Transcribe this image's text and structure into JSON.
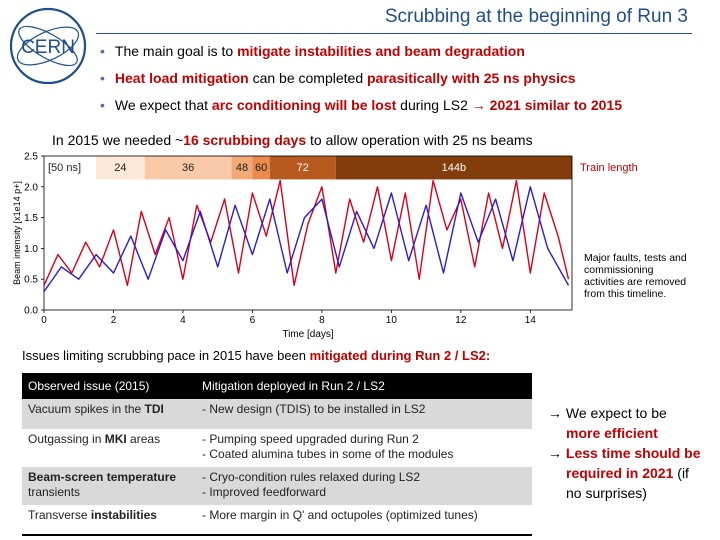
{
  "header": {
    "title": "Scrubbing at the beginning of Run 3",
    "logo_text": "CERN"
  },
  "bullets": [
    {
      "parts": [
        {
          "t": "The main goal is to ",
          "h": false
        },
        {
          "t": "mitigate instabilities and beam degradation",
          "h": true
        }
      ]
    },
    {
      "parts": [
        {
          "t": "Heat load mitigation",
          "h": true
        },
        {
          "t": " can be completed ",
          "h": false
        },
        {
          "t": "parasitically with 25 ns physics",
          "h": true
        }
      ]
    },
    {
      "parts": [
        {
          "t": "We expect that ",
          "h": false
        },
        {
          "t": "arc conditioning will be lost",
          "h": true
        },
        {
          "t": " during LS2 ",
          "h": false
        },
        {
          "t": "→",
          "h": true
        },
        {
          "t": " 2021 similar to 2015",
          "h": true
        }
      ]
    }
  ],
  "chart_heading": {
    "pre": "In 2015 we needed ~",
    "highlight": "16 scrubbing days",
    "post": " to allow operation with 25 ns beams"
  },
  "chart_data": {
    "type": "line",
    "xlabel": "Time [days]",
    "ylabel": "Beam intensity [x1e14 p+]",
    "xlim": [
      0,
      15.2
    ],
    "ylim": [
      0,
      2.5
    ],
    "xticks": [
      0,
      2,
      4,
      6,
      8,
      10,
      12,
      14
    ],
    "yticks": [
      0.0,
      0.5,
      1.0,
      1.5,
      2.0,
      2.5
    ],
    "train_length_label": "Train length",
    "train_bands": [
      {
        "label": "[50 ns]",
        "start": 0.0,
        "end": 1.5,
        "color": "#ffffff"
      },
      {
        "label": "24",
        "start": 1.5,
        "end": 2.9,
        "color": "#fde7d6"
      },
      {
        "label": "36",
        "start": 2.9,
        "end": 5.4,
        "color": "#f9c9a8"
      },
      {
        "label": "48",
        "start": 5.4,
        "end": 6.0,
        "color": "#f3a877"
      },
      {
        "label": "60",
        "start": 6.0,
        "end": 6.5,
        "color": "#e98a4e"
      },
      {
        "label": "72",
        "start": 6.5,
        "end": 8.4,
        "color": "#b75a20"
      },
      {
        "label": "144b",
        "start": 8.4,
        "end": 15.2,
        "color": "#833c0c"
      }
    ],
    "series": [
      {
        "color": "#d9001b",
        "x": [
          0,
          0.4,
          0.8,
          1.2,
          1.6,
          2.0,
          2.4,
          2.8,
          3.2,
          3.6,
          4.0,
          4.4,
          4.8,
          5.2,
          5.6,
          6.0,
          6.4,
          6.8,
          7.2,
          7.6,
          8.0,
          8.4,
          8.8,
          9.2,
          9.6,
          10.0,
          10.4,
          10.8,
          11.2,
          11.6,
          12.0,
          12.4,
          12.8,
          13.2,
          13.6,
          14.0,
          14.4,
          14.8,
          15.1
        ],
        "y": [
          0.4,
          0.9,
          0.6,
          1.1,
          0.7,
          1.3,
          0.4,
          1.6,
          0.9,
          1.5,
          0.5,
          1.7,
          1.1,
          1.8,
          0.6,
          1.9,
          1.2,
          2.1,
          0.4,
          1.4,
          2.0,
          0.6,
          1.8,
          1.1,
          2.0,
          0.8,
          1.9,
          0.5,
          2.1,
          1.3,
          1.8,
          0.7,
          1.9,
          1.0,
          2.1,
          0.6,
          1.9,
          1.2,
          0.5
        ]
      },
      {
        "color": "#2a1bd6",
        "x": [
          0,
          0.5,
          1.0,
          1.5,
          2.0,
          2.5,
          3.0,
          3.5,
          4.0,
          4.5,
          5.0,
          5.5,
          6.0,
          6.5,
          7.0,
          7.5,
          8.0,
          8.5,
          9.0,
          9.5,
          10.0,
          10.5,
          11.0,
          11.5,
          12.0,
          12.5,
          13.0,
          13.5,
          14.0,
          14.5,
          15.1
        ],
        "y": [
          0.3,
          0.7,
          0.5,
          0.9,
          0.6,
          1.2,
          0.5,
          1.3,
          0.8,
          1.6,
          0.7,
          1.7,
          0.9,
          1.8,
          0.6,
          1.5,
          1.8,
          0.7,
          1.6,
          1.0,
          1.9,
          0.8,
          1.7,
          0.6,
          1.9,
          1.1,
          1.8,
          0.8,
          2.0,
          1.0,
          0.4
        ]
      }
    ]
  },
  "side_note": [
    "Major faults, tests and",
    "commissioning",
    "activities are removed",
    "from this timeline."
  ],
  "issues_heading": {
    "pre": "Issues limiting scrubbing pace in 2015 have been ",
    "highlight": "mitigated during Run 2 / LS2:"
  },
  "table": {
    "headers": [
      "Observed issue (2015)",
      "Mitigation deployed in Run 2 / LS2"
    ],
    "rows": [
      {
        "issue_pre": "Vacuum spikes in the ",
        "issue_bold": "TDI",
        "issue_post": "",
        "mitigation": [
          "- New design (TDIS) to be installed in LS2"
        ]
      },
      {
        "issue_pre": "Outgassing in ",
        "issue_bold": "MKI",
        "issue_post": " areas",
        "mitigation": [
          "- Pumping speed upgraded during Run 2",
          "- Coated alumina tubes in some of the modules"
        ]
      },
      {
        "issue_pre": "",
        "issue_bold": "Beam-screen temperature",
        "issue_post": "transients",
        "mitigation": [
          "- Cryo-condition rules relaxed during LS2",
          "- Improved feedforward"
        ]
      },
      {
        "issue_pre": "Transverse ",
        "issue_bold": "instabilities",
        "issue_post": "",
        "mitigation": [
          "- More margin in Q' and octupoles (optimized tunes)"
        ]
      }
    ]
  },
  "conclusion": [
    {
      "arrow": "→",
      "lines": [
        {
          "t": "We expect to be",
          "h": false
        },
        {
          "t": "more efficient",
          "h": true
        }
      ]
    },
    {
      "arrow": "→",
      "lines": [
        {
          "t": "Less time should be",
          "h": true
        },
        {
          "t": "required in 2021",
          "h": true
        },
        {
          "t": " (if",
          "h": false,
          "inline": true
        },
        {
          "t": "no surprises)",
          "h": false
        }
      ]
    }
  ]
}
